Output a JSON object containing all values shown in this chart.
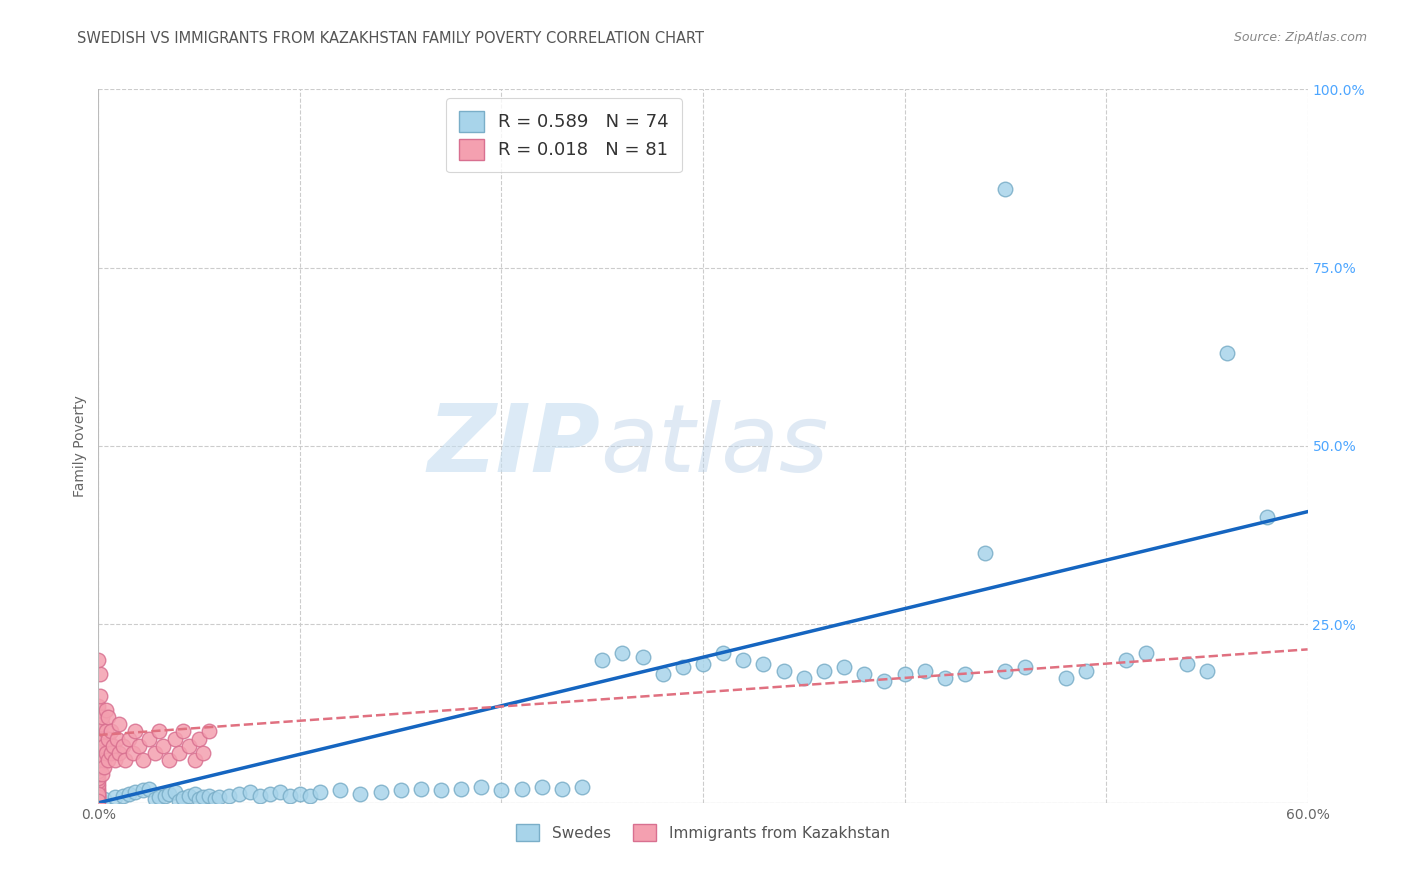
{
  "title": "SWEDISH VS IMMIGRANTS FROM KAZAKHSTAN FAMILY POVERTY CORRELATION CHART",
  "source_text": "Source: ZipAtlas.com",
  "ylabel": "Family Poverty",
  "xlim": [
    0.0,
    0.6
  ],
  "ylim": [
    0.0,
    1.0
  ],
  "xticks": [
    0.0,
    0.1,
    0.2,
    0.3,
    0.4,
    0.5,
    0.6
  ],
  "xticklabels": [
    "0.0%",
    "",
    "",
    "",
    "",
    "",
    "60.0%"
  ],
  "ytick_positions": [
    0.0,
    0.25,
    0.5,
    0.75,
    1.0
  ],
  "ytick_labels_right": [
    "",
    "25.0%",
    "50.0%",
    "75.0%",
    "100.0%"
  ],
  "blue_color": "#A8D4EA",
  "blue_edge": "#7AAEC8",
  "pink_color": "#F4A0B0",
  "pink_edge": "#D87090",
  "blue_line_color": "#1565C0",
  "pink_line_color": "#E07080",
  "grid_color": "#CCCCCC",
  "title_color": "#555555",
  "source_color": "#888888",
  "tick_color_right": "#4da6ff",
  "swedes_label": "Swedes",
  "kazakhstan_label": "Immigrants from Kazakhstan",
  "blue_x": [
    0.003,
    0.008,
    0.012,
    0.015,
    0.018,
    0.022,
    0.025,
    0.028,
    0.03,
    0.033,
    0.035,
    0.038,
    0.04,
    0.042,
    0.045,
    0.048,
    0.05,
    0.052,
    0.055,
    0.058,
    0.06,
    0.065,
    0.07,
    0.075,
    0.08,
    0.085,
    0.09,
    0.095,
    0.1,
    0.105,
    0.11,
    0.12,
    0.13,
    0.14,
    0.15,
    0.16,
    0.17,
    0.18,
    0.19,
    0.2,
    0.21,
    0.22,
    0.23,
    0.24,
    0.25,
    0.26,
    0.27,
    0.28,
    0.29,
    0.3,
    0.31,
    0.32,
    0.33,
    0.34,
    0.35,
    0.36,
    0.37,
    0.38,
    0.39,
    0.4,
    0.41,
    0.42,
    0.43,
    0.44,
    0.45,
    0.46,
    0.48,
    0.49,
    0.51,
    0.52,
    0.54,
    0.55,
    0.45,
    0.58,
    0.56
  ],
  "blue_y": [
    0.005,
    0.008,
    0.01,
    0.012,
    0.015,
    0.018,
    0.02,
    0.005,
    0.008,
    0.01,
    0.012,
    0.015,
    0.003,
    0.007,
    0.01,
    0.013,
    0.005,
    0.008,
    0.01,
    0.005,
    0.008,
    0.01,
    0.012,
    0.015,
    0.01,
    0.012,
    0.015,
    0.01,
    0.012,
    0.01,
    0.015,
    0.018,
    0.012,
    0.015,
    0.018,
    0.02,
    0.018,
    0.02,
    0.022,
    0.018,
    0.02,
    0.022,
    0.02,
    0.022,
    0.2,
    0.21,
    0.205,
    0.18,
    0.19,
    0.195,
    0.21,
    0.2,
    0.195,
    0.185,
    0.175,
    0.185,
    0.19,
    0.18,
    0.17,
    0.18,
    0.185,
    0.175,
    0.18,
    0.35,
    0.185,
    0.19,
    0.175,
    0.185,
    0.2,
    0.21,
    0.195,
    0.185,
    0.86,
    0.4,
    0.63
  ],
  "pink_x": [
    0.0,
    0.0,
    0.0,
    0.0,
    0.0,
    0.0,
    0.0,
    0.0,
    0.0,
    0.0,
    0.0,
    0.0,
    0.0,
    0.0,
    0.0,
    0.0,
    0.0,
    0.0,
    0.0,
    0.0,
    0.0,
    0.0,
    0.0,
    0.0,
    0.0,
    0.0,
    0.0,
    0.0,
    0.0,
    0.0,
    0.001,
    0.001,
    0.001,
    0.001,
    0.001,
    0.001,
    0.001,
    0.001,
    0.002,
    0.002,
    0.002,
    0.002,
    0.002,
    0.003,
    0.003,
    0.003,
    0.003,
    0.004,
    0.004,
    0.004,
    0.005,
    0.005,
    0.005,
    0.006,
    0.006,
    0.007,
    0.008,
    0.009,
    0.01,
    0.01,
    0.012,
    0.013,
    0.015,
    0.017,
    0.018,
    0.02,
    0.022,
    0.025,
    0.028,
    0.03,
    0.032,
    0.035,
    0.038,
    0.04,
    0.042,
    0.045,
    0.048,
    0.05,
    0.052,
    0.055,
    0.0
  ],
  "pink_y": [
    0.01,
    0.015,
    0.02,
    0.025,
    0.03,
    0.035,
    0.04,
    0.045,
    0.05,
    0.055,
    0.06,
    0.065,
    0.07,
    0.075,
    0.08,
    0.085,
    0.09,
    0.095,
    0.1,
    0.105,
    0.11,
    0.115,
    0.12,
    0.125,
    0.13,
    0.135,
    0.005,
    0.008,
    0.012,
    0.003,
    0.05,
    0.08,
    0.1,
    0.12,
    0.15,
    0.18,
    0.06,
    0.09,
    0.07,
    0.11,
    0.04,
    0.08,
    0.12,
    0.06,
    0.09,
    0.05,
    0.08,
    0.07,
    0.1,
    0.13,
    0.06,
    0.09,
    0.12,
    0.07,
    0.1,
    0.08,
    0.06,
    0.09,
    0.07,
    0.11,
    0.08,
    0.06,
    0.09,
    0.07,
    0.1,
    0.08,
    0.06,
    0.09,
    0.07,
    0.1,
    0.08,
    0.06,
    0.09,
    0.07,
    0.1,
    0.08,
    0.06,
    0.09,
    0.07,
    0.1,
    0.2
  ]
}
